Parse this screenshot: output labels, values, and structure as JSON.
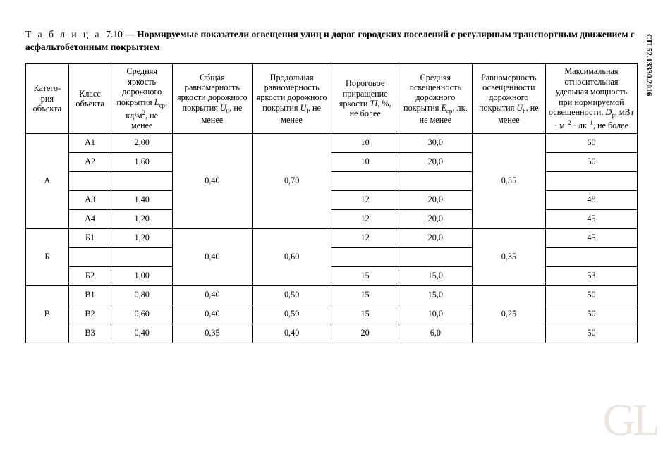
{
  "doc_code": "СП 52.13330.2016",
  "table_prefix": "Т а б л и ц а",
  "table_num": "7.10",
  "dash": " — ",
  "table_title": "Нормируемые показатели освещения улиц и дорог городских поселений с регулярным транспортным движением с асфальтобетонным покрытием",
  "headers": {
    "h1": "Катего-\nрия\nобъекта",
    "h2": "Класс\nобъекта",
    "h3_a": "Средняя яркость дорожного покрытия ",
    "h3_b": "L",
    "h3_c": "ср",
    "h3_d": ", кд/м",
    "h3_e": "2",
    "h3_f": ",\nне менее",
    "h4_a": "Общая равномерность яркости дорожного покрытия ",
    "h4_b": "U",
    "h4_c": "0",
    "h4_d": ",\nне менее",
    "h5_a": "Продольная равномерность яркости дорожного покрытия ",
    "h5_b": "U",
    "h5_c": "l",
    "h5_d": ",\nне менее",
    "h6_a": "Пороговое приращение яркости ",
    "h6_b": "TI",
    "h6_c": ",\n%, не более",
    "h7_a": "Средняя освещенность дорожного покрытия ",
    "h7_b": "E",
    "h7_c": "ср",
    "h7_d": ",\nлк,\nне менее",
    "h8_a": "Равномерность освещенности дорожного покрытия ",
    "h8_b": "U",
    "h8_c": "h",
    "h8_d": ",\nне менее",
    "h9_a": "Максимальная относительная удельная мощность при нормируемой освещенности,\n",
    "h9_b": "D",
    "h9_c": "p",
    "h9_d": ", мВт · м",
    "h9_e": "–2",
    "h9_f": " · лк",
    "h9_g": "–1",
    "h9_h": ",\nне более"
  },
  "groups": [
    {
      "cat": "А",
      "u0": "0,40",
      "ul": "0,70",
      "uh": "0,35",
      "rows": [
        {
          "class": "А1",
          "L": "2,00",
          "TI": "10",
          "E": "30,0",
          "Dp": "60"
        },
        {
          "class": "А2",
          "L": "1,60",
          "TI": "10",
          "E": "20,0",
          "Dp": "50"
        },
        {
          "class": "",
          "L": "",
          "TI": "",
          "E": "",
          "Dp": ""
        },
        {
          "class": "А3",
          "L": "1,40",
          "TI": "12",
          "E": "20,0",
          "Dp": "48"
        },
        {
          "class": "А4",
          "L": "1,20",
          "TI": "12",
          "E": "20,0",
          "Dp": "45"
        }
      ]
    },
    {
      "cat": "Б",
      "u0": "0,40",
      "ul": "0,60",
      "uh": "0,35",
      "rows": [
        {
          "class": "Б1",
          "L": "1,20",
          "TI": "12",
          "E": "20,0",
          "Dp": "45"
        },
        {
          "class": "",
          "L": "",
          "TI": "",
          "E": "",
          "Dp": ""
        },
        {
          "class": "Б2",
          "L": "1,00",
          "TI": "15",
          "E": "15,0",
          "Dp": "53"
        }
      ]
    },
    {
      "cat": "В",
      "uh": "0,25",
      "rows": [
        {
          "class": "В1",
          "L": "0,80",
          "u0": "0,40",
          "ul": "0,50",
          "TI": "15",
          "E": "15,0",
          "Dp": "50"
        },
        {
          "class": "В2",
          "L": "0,60",
          "u0": "0,40",
          "ul": "0,50",
          "TI": "15",
          "E": "10,0",
          "Dp": "50"
        },
        {
          "class": "В3",
          "L": "0,40",
          "u0": "0,35",
          "ul": "0,40",
          "TI": "20",
          "E": "6,0",
          "Dp": "50"
        }
      ]
    }
  ],
  "watermark": "GL",
  "style": {
    "font_family": "Times New Roman",
    "body_fontsize_pt": 10,
    "header_fontsize_pt": 9,
    "border_color": "#000000",
    "background": "#ffffff",
    "watermark_color": "#d9d2c2"
  }
}
